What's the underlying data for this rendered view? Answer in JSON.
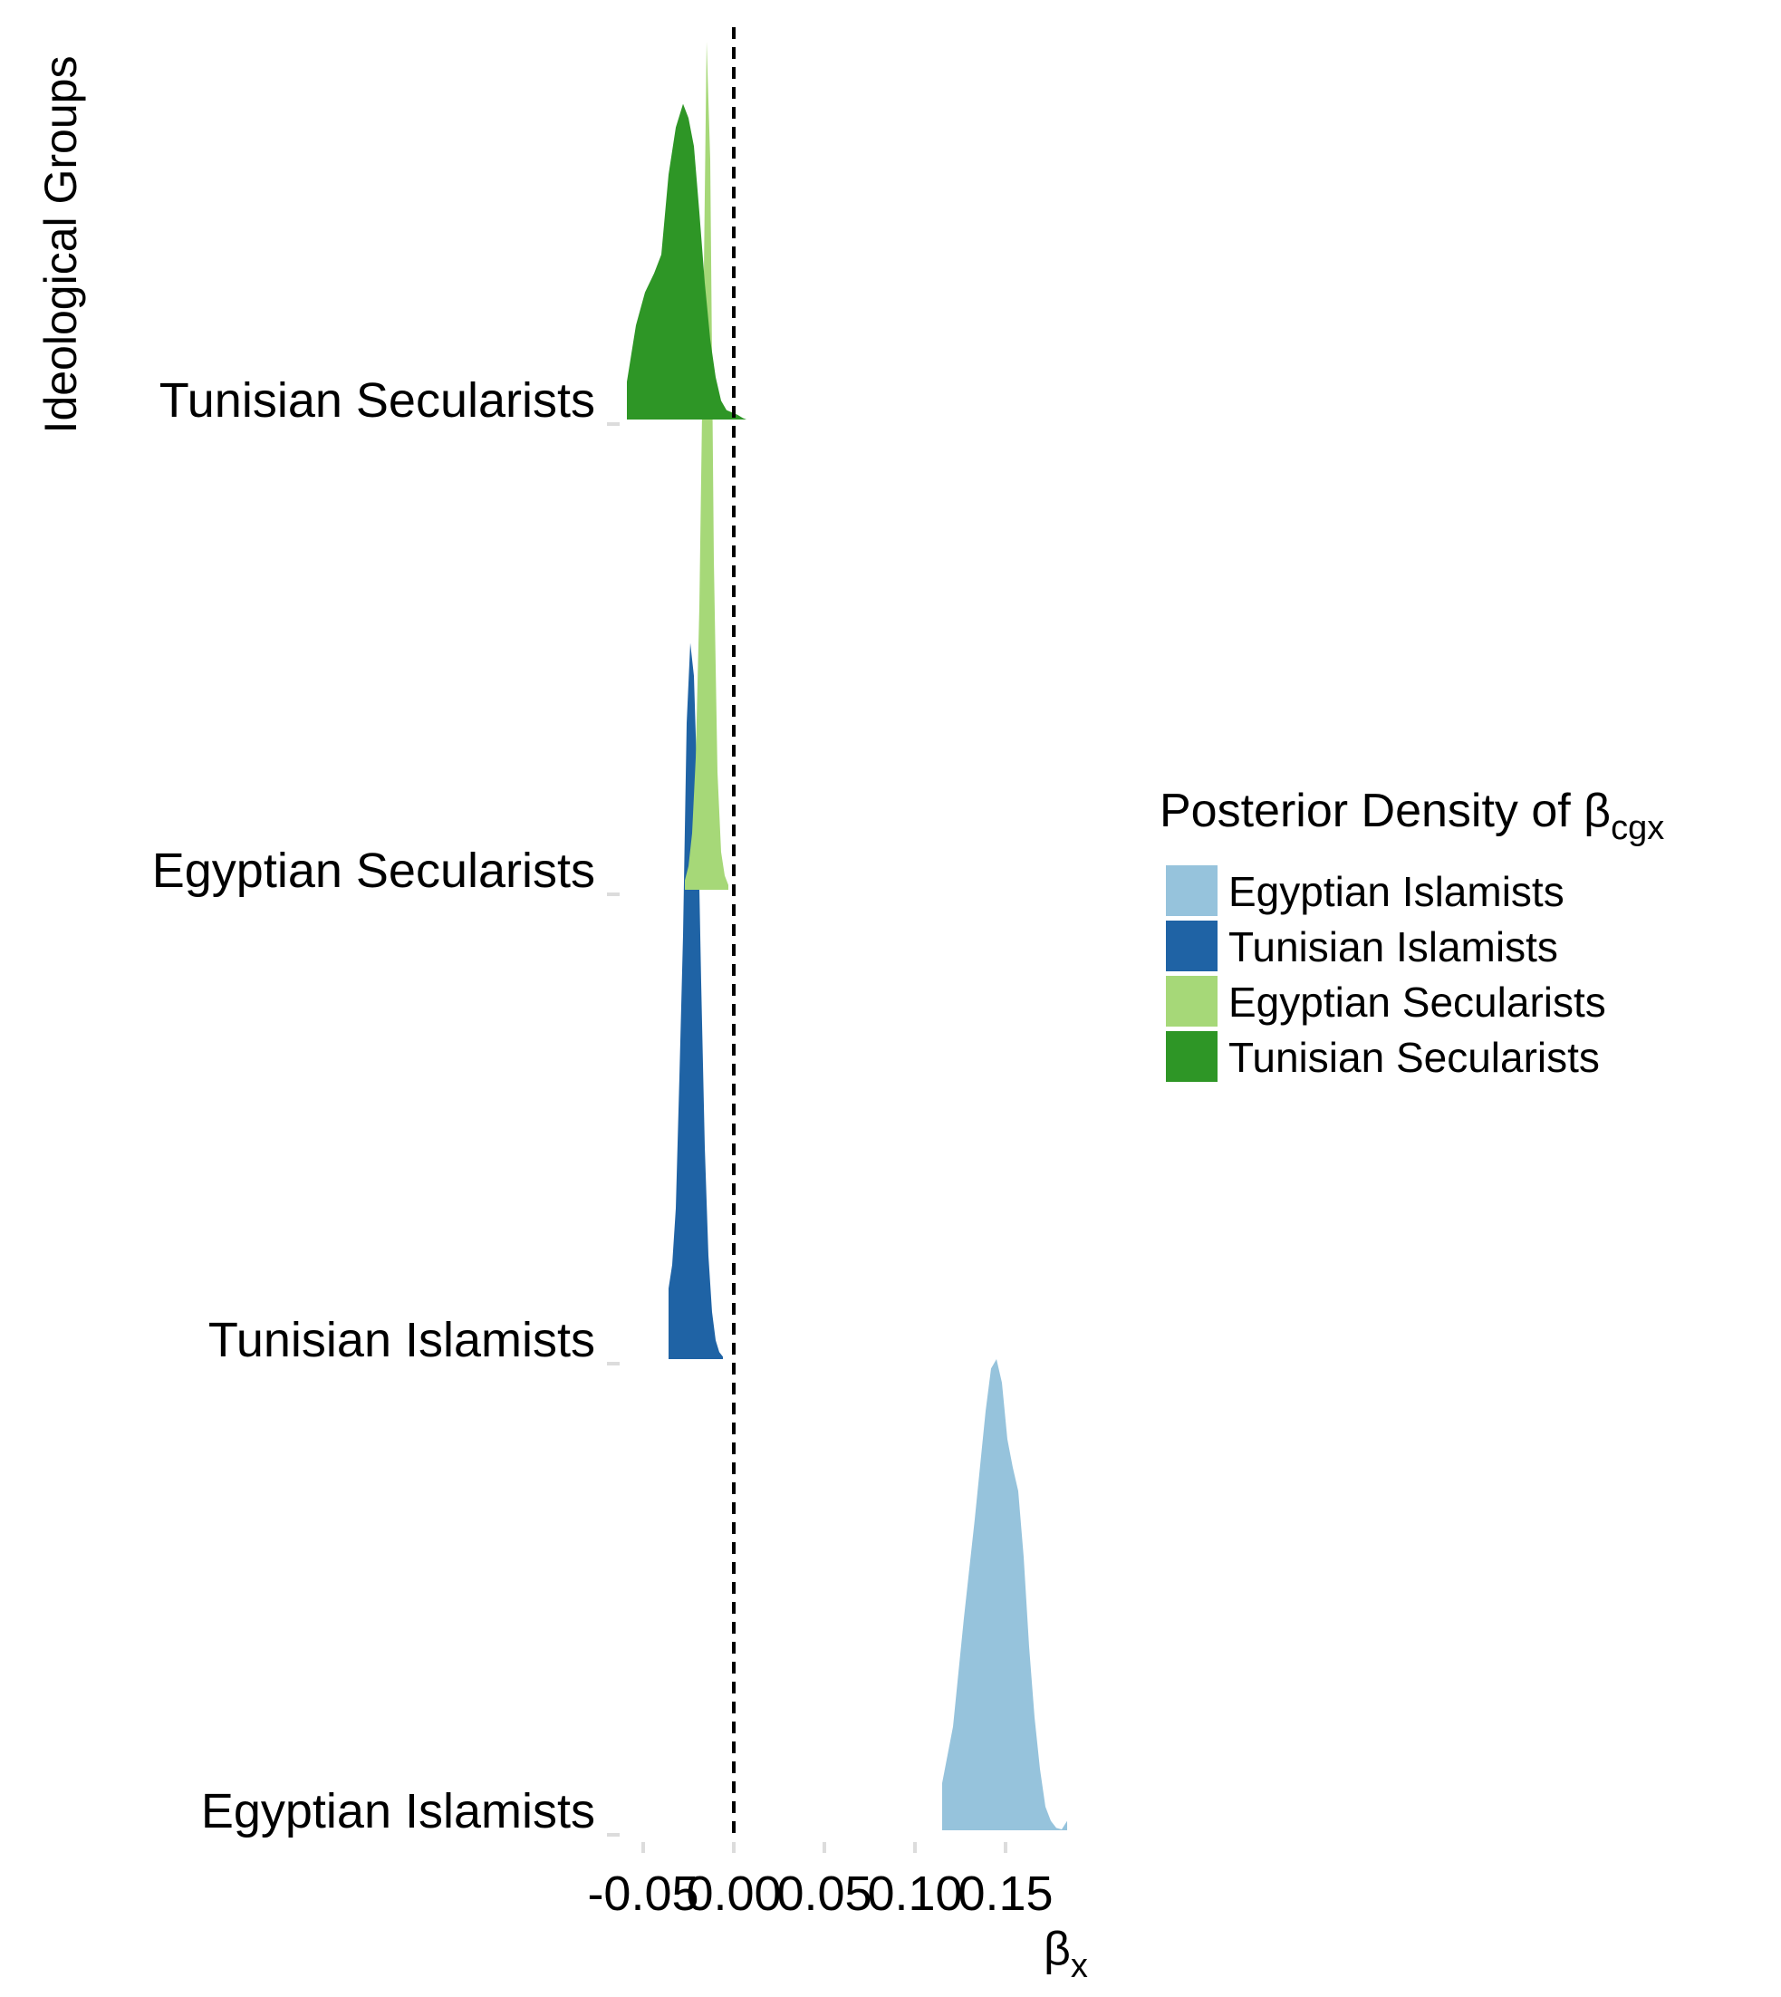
{
  "chart_data": {
    "type": "area",
    "title": "",
    "xlabel": "βx",
    "xlabel_parts": {
      "main": "β",
      "sub": "x"
    },
    "ylabel": "Ideological Groups",
    "xlim": [
      -0.065,
      0.2
    ],
    "x_ticks": [
      {
        "value": -0.05,
        "label": "-0.05"
      },
      {
        "value": 0.0,
        "label": "0.00"
      },
      {
        "value": 0.05,
        "label": "0.05"
      },
      {
        "value": 0.1,
        "label": "0.10"
      },
      {
        "value": 0.15,
        "label": "0.15"
      }
    ],
    "grid": false,
    "reference_line": {
      "x": 0.0,
      "style": "dashed"
    },
    "categories": [
      "Egyptian Islamists",
      "Tunisian Islamists",
      "Egyptian Secularists",
      "Tunisian Secularists"
    ],
    "legend": {
      "title": "Posterior Density of βcgx",
      "title_parts": {
        "main": "Posterior Density of β",
        "sub": "cgx"
      },
      "position": "right",
      "entries": [
        "Egyptian Islamists",
        "Tunisian Islamists",
        "Egyptian Secularists",
        "Tunisian Secularists"
      ]
    },
    "series": [
      {
        "name": "Egyptian Islamists",
        "color": "#96c3dc",
        "category": "Egyptian Islamists",
        "density": {
          "x": [
            0.115,
            0.121,
            0.127,
            0.133,
            0.139,
            0.142,
            0.145,
            0.148,
            0.151,
            0.154,
            0.157,
            0.16,
            0.163,
            0.166,
            0.169,
            0.172,
            0.175,
            0.178,
            0.181,
            0.184
          ],
          "y": [
            0.1,
            0.22,
            0.45,
            0.66,
            0.89,
            0.98,
            1.0,
            0.95,
            0.83,
            0.77,
            0.72,
            0.58,
            0.39,
            0.24,
            0.13,
            0.05,
            0.02,
            0.005,
            0.002,
            0.02
          ]
        }
      },
      {
        "name": "Tunisian Islamists",
        "color": "#1f63a5",
        "category": "Tunisian Islamists",
        "density": {
          "x": [
            -0.036,
            -0.034,
            -0.032,
            -0.03,
            -0.028,
            -0.026,
            -0.024,
            -0.022,
            -0.02,
            -0.018,
            -0.016,
            -0.014,
            -0.012,
            -0.01,
            -0.008,
            -0.006
          ],
          "y": [
            0.15,
            0.2,
            0.32,
            0.6,
            0.9,
            1.35,
            1.52,
            1.45,
            1.2,
            0.8,
            0.45,
            0.22,
            0.1,
            0.04,
            0.015,
            0.005
          ]
        }
      },
      {
        "name": "Egyptian Secularists",
        "color": "#a6d878",
        "category": "Egyptian Secularists",
        "density": {
          "x": [
            -0.027,
            -0.025,
            -0.023,
            -0.021,
            -0.019,
            -0.017,
            -0.015,
            -0.013,
            -0.011,
            -0.009,
            -0.007,
            -0.005,
            -0.003
          ],
          "y": [
            0.02,
            0.05,
            0.12,
            0.28,
            0.6,
            1.15,
            1.8,
            1.55,
            0.7,
            0.25,
            0.08,
            0.03,
            0.01
          ]
        }
      },
      {
        "name": "Tunisian Secularists",
        "color": "#2e9626",
        "category": "Tunisian Secularists",
        "density": {
          "x": [
            -0.059,
            -0.054,
            -0.049,
            -0.044,
            -0.04,
            -0.036,
            -0.032,
            -0.028,
            -0.025,
            -0.022,
            -0.019,
            -0.016,
            -0.013,
            -0.01,
            -0.007,
            -0.004,
            -0.001,
            0.002,
            0.005,
            0.007
          ],
          "y": [
            0.08,
            0.2,
            0.27,
            0.31,
            0.35,
            0.52,
            0.62,
            0.67,
            0.64,
            0.58,
            0.44,
            0.29,
            0.17,
            0.09,
            0.04,
            0.02,
            0.015,
            0.01,
            0.003,
            0.0
          ]
        }
      }
    ]
  }
}
